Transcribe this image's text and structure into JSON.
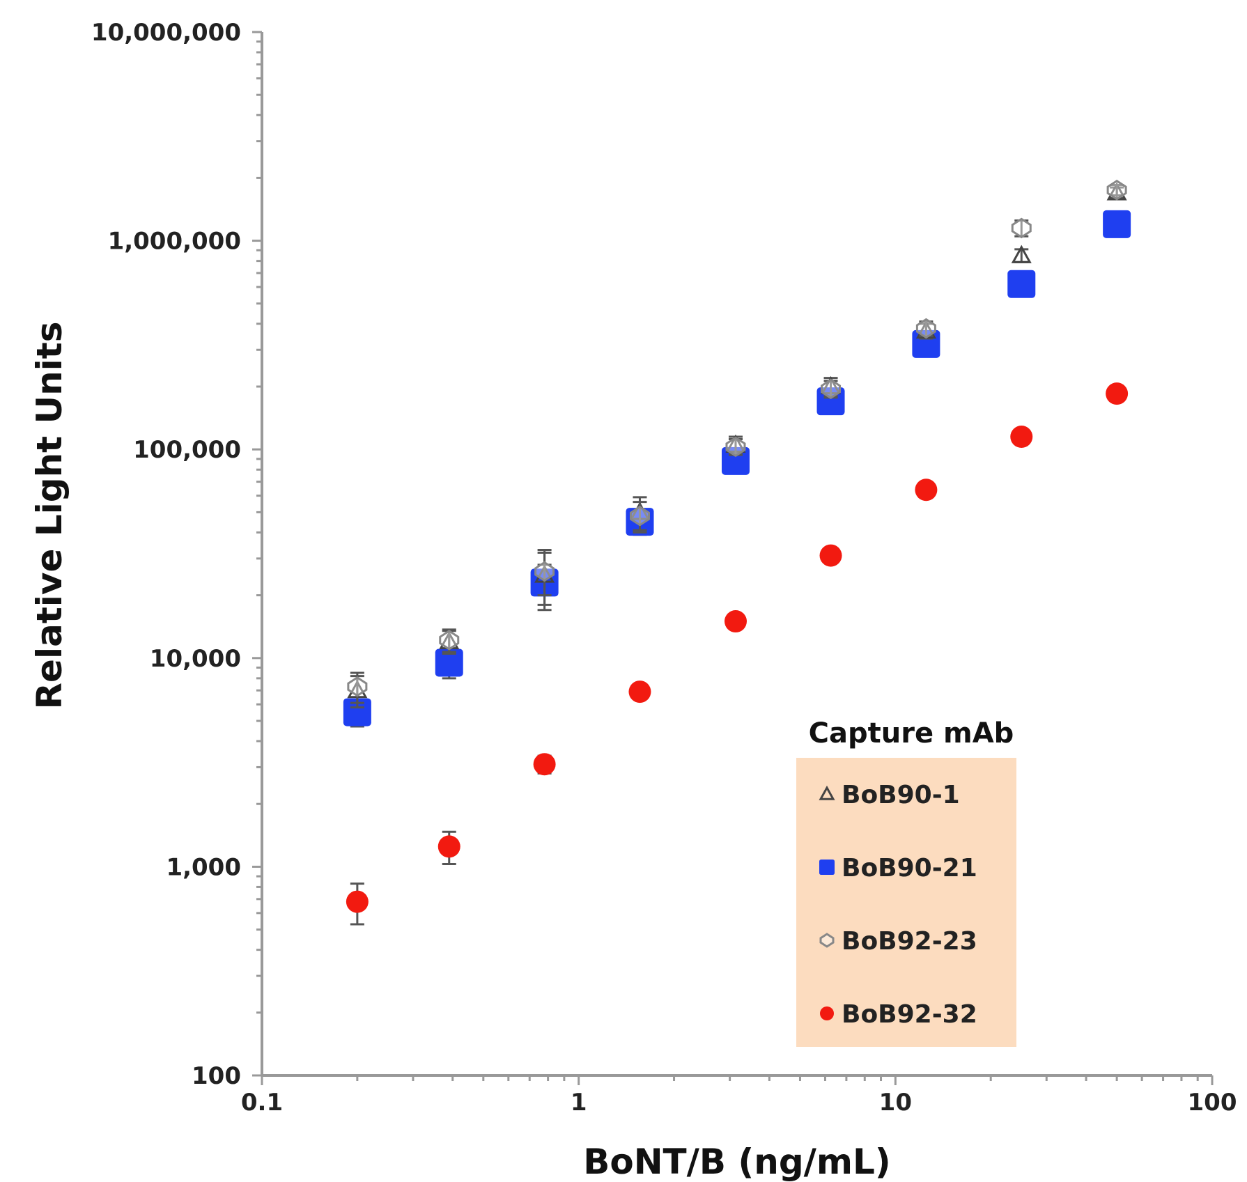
{
  "chart_data": {
    "type": "scatter",
    "title": "",
    "xlabel": "BoNT/B (ng/mL)",
    "ylabel": "Relative Light Units",
    "xscale": "log",
    "yscale": "log",
    "xlim": [
      0.1,
      100
    ],
    "ylim": [
      100,
      10000000
    ],
    "x_ticks": [
      {
        "value": 0.1,
        "label": "0.1"
      },
      {
        "value": 1,
        "label": "1"
      },
      {
        "value": 10,
        "label": "10"
      },
      {
        "value": 100,
        "label": "100"
      }
    ],
    "y_ticks": [
      {
        "value": 100,
        "label": "100"
      },
      {
        "value": 1000,
        "label": "1,000"
      },
      {
        "value": 10000,
        "label": "10,000"
      },
      {
        "value": 100000,
        "label": "100,000"
      },
      {
        "value": 1000000,
        "label": "1,000,000"
      },
      {
        "value": 10000000,
        "label": "10,000,000"
      }
    ],
    "grid": false,
    "legend": {
      "title": "Capture mAb",
      "placement": "bottom-right",
      "background": "#fcdcbf"
    },
    "x": [
      0.2,
      0.39,
      0.78,
      1.56,
      3.13,
      6.25,
      12.5,
      25,
      50
    ],
    "series": [
      {
        "name": "BoB90-1",
        "marker": "triangle",
        "color": "#444444",
        "values": [
          7000,
          12000,
          25000,
          50000,
          105000,
          200000,
          370000,
          850000,
          1700000
        ],
        "errors": [
          1200,
          1500,
          8000,
          9000,
          10000,
          20000,
          30000,
          60000,
          100000
        ]
      },
      {
        "name": "BoB90-21",
        "marker": "square",
        "color": "#1f3ff0",
        "values": [
          5500,
          9500,
          23000,
          45000,
          88000,
          170000,
          320000,
          620000,
          1200000
        ],
        "errors": [
          800,
          1500,
          5000,
          6000,
          8000,
          15000,
          25000,
          50000,
          80000
        ]
      },
      {
        "name": "BoB92-23",
        "marker": "diamond",
        "color": "#888888",
        "values": [
          7300,
          12200,
          26000,
          48000,
          103000,
          195000,
          380000,
          1150000,
          1750000
        ],
        "errors": [
          1200,
          1500,
          6000,
          8000,
          9000,
          18000,
          30000,
          100000,
          100000
        ]
      },
      {
        "name": "BoB92-32",
        "marker": "circle",
        "color": "#f21a10",
        "values": [
          680,
          1250,
          3100,
          6900,
          15000,
          31000,
          64000,
          115000,
          185000
        ],
        "errors": [
          150,
          220,
          300,
          500,
          1000,
          2000,
          4000,
          6000,
          10000
        ]
      }
    ]
  }
}
